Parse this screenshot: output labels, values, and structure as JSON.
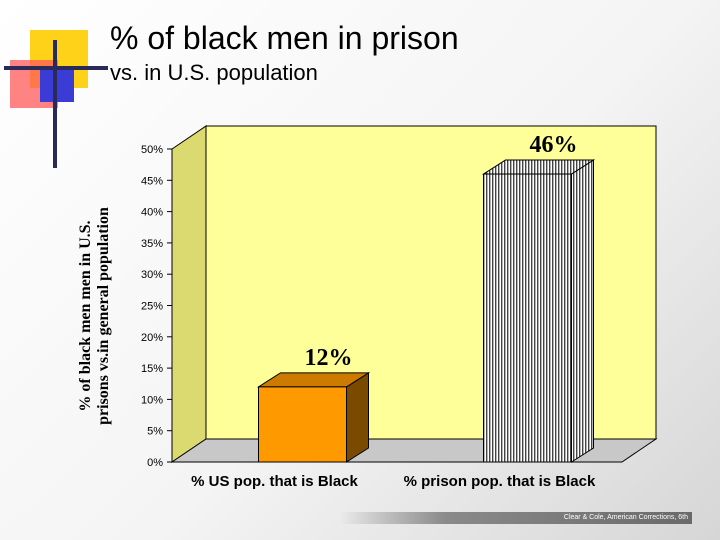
{
  "slide": {
    "title": "% of black men in prison",
    "subtitle": "vs. in U.S. population",
    "footer": "Clear & Cole, American Corrections, 6th"
  },
  "colors": {
    "plot_area": "#ffff99",
    "bar1_front": "#ff9900",
    "bar1_side": "#7a4a00",
    "bar1_top": "#cc7a00",
    "bar2_front": "#ffffff",
    "bar2_stripe": "#444444"
  },
  "chart_data": {
    "type": "bar",
    "title": "",
    "ylabel_lines": [
      "% of black men men in U.S.",
      "prisons vs.in general population"
    ],
    "xlabel": "",
    "categories": [
      "% US pop. that is Black",
      "% prison pop. that is Black"
    ],
    "values": [
      12,
      46
    ],
    "data_labels": [
      "12%",
      "46%"
    ],
    "yticks": [
      "0%",
      "5%",
      "10%",
      "15%",
      "20%",
      "25%",
      "30%",
      "35%",
      "40%",
      "45%",
      "50%"
    ],
    "ylim": [
      0,
      50
    ],
    "grid": false,
    "legend": "none"
  }
}
